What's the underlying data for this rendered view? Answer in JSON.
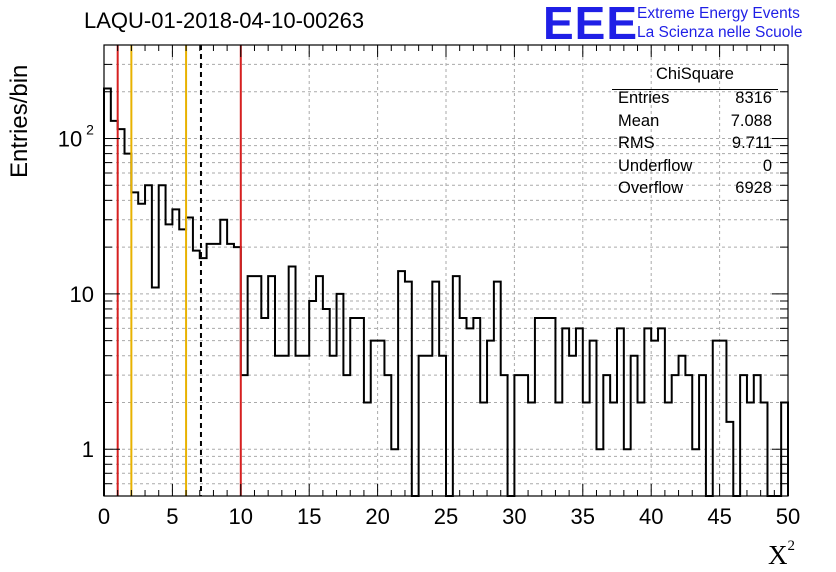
{
  "title": "LAQU-01-2018-04-10-00263",
  "logo": {
    "mark": "EEE",
    "line1": "Extreme Energy Events",
    "line2": "La Scienza nelle Scuole"
  },
  "stats": {
    "name": "ChiSquare",
    "rows": [
      {
        "label": "Entries",
        "value": "8316"
      },
      {
        "label": "Mean",
        "value": "7.088"
      },
      {
        "label": "RMS",
        "value": "9.711"
      },
      {
        "label": "Underflow",
        "value": "0"
      },
      {
        "label": "Overflow",
        "value": "6928"
      }
    ]
  },
  "axes": {
    "ylabel": "Entries/bin",
    "xlabel": "X",
    "xlabel_sup": "2",
    "xticks": [
      "0",
      "5",
      "10",
      "15",
      "20",
      "25",
      "30",
      "35",
      "40",
      "45",
      "50"
    ],
    "yticks": [
      {
        "v": 1,
        "label": "1"
      },
      {
        "v": 10,
        "label": "10"
      },
      {
        "v": 100,
        "label": "10",
        "sup": "2"
      }
    ]
  },
  "chart_data": {
    "type": "histogram",
    "x_range": [
      0,
      50
    ],
    "y_range": [
      0.5,
      400
    ],
    "y_scale": "log",
    "grid": true,
    "bin_width": 0.5,
    "values": [
      210,
      130,
      115,
      80,
      45,
      38,
      50,
      11,
      50,
      28,
      35,
      26,
      31,
      19,
      17,
      21,
      21,
      30,
      21,
      20,
      3,
      13,
      13,
      7,
      13,
      4,
      4,
      15,
      4,
      4,
      9,
      13,
      8,
      4,
      10,
      3,
      7,
      7,
      2,
      5,
      5,
      3,
      1,
      14,
      12,
      0,
      4,
      4,
      12,
      4,
      0,
      13,
      7,
      6,
      7,
      2,
      5,
      12,
      3,
      0,
      3,
      3,
      2,
      7,
      7,
      7,
      2,
      6,
      4,
      6,
      2,
      5,
      1,
      3,
      2,
      6,
      1,
      4,
      2,
      6,
      5,
      6,
      2,
      3,
      4,
      3,
      1,
      3,
      0,
      5,
      5,
      1.5,
      0,
      3,
      2,
      3,
      2,
      0.5,
      0,
      2
    ],
    "vlines": [
      {
        "x": 1,
        "color": "#d62020",
        "style": "solid"
      },
      {
        "x": 2,
        "color": "#e8b200",
        "style": "solid"
      },
      {
        "x": 6,
        "color": "#e8b200",
        "style": "solid"
      },
      {
        "x": 7.088,
        "color": "#000000",
        "style": "dashed"
      },
      {
        "x": 10,
        "color": "#d62020",
        "style": "solid"
      }
    ]
  }
}
